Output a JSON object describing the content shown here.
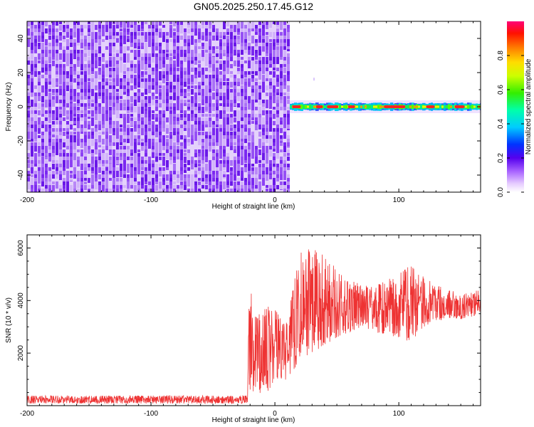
{
  "title": "GN05.2025.250.17.45.G12",
  "chart_data": [
    {
      "type": "heatmap",
      "xlabel": "Height of straight line (km)",
      "ylabel": "Frequency (Hz)",
      "xlim": [
        -200,
        166
      ],
      "ylim": [
        -50,
        50
      ],
      "xticks": [
        -200,
        -100,
        0,
        100
      ],
      "yticks": [
        -40,
        -20,
        0,
        20,
        40
      ],
      "noise_region_x": [
        -200,
        12
      ],
      "signal_band_freq_hz": 0,
      "signal_band_x": [
        12,
        166
      ],
      "colorbar": {
        "label": "Normalized spectral amplitude",
        "range": [
          0.0,
          1.0
        ],
        "ticks": [
          "0.0",
          "0.2",
          "0.4",
          "0.6",
          "0.8"
        ]
      },
      "grid": false
    },
    {
      "type": "line",
      "xlabel": "Height of straight line (km)",
      "ylabel": "SNR (10 * v/v)",
      "xlim": [
        -200,
        166
      ],
      "ylim": [
        0,
        6500
      ],
      "xticks": [
        -200,
        -100,
        0,
        100
      ],
      "yticks": [
        2000,
        4000,
        6000
      ],
      "color": "#ee3333",
      "grid": false,
      "series": [
        {
          "envelope_x": [
            -200,
            -50,
            -22,
            -21,
            -15,
            -10,
            -5,
            0,
            5,
            10,
            15,
            20,
            30,
            40,
            50,
            60,
            70,
            80,
            90,
            100,
            110,
            120,
            130,
            140,
            150,
            160,
            166
          ],
          "envelope_low": [
            80,
            80,
            80,
            600,
            300,
            600,
            500,
            800,
            900,
            1000,
            1300,
            1700,
            2000,
            2300,
            2600,
            2800,
            3000,
            2800,
            2700,
            2600,
            2400,
            3000,
            3200,
            3300,
            3300,
            3400,
            3500
          ],
          "envelope_high": [
            380,
            380,
            380,
            4650,
            3500,
            3600,
            3800,
            3700,
            3500,
            3100,
            4700,
            5900,
            6000,
            5700,
            5200,
            4800,
            4600,
            4500,
            4800,
            5000,
            5400,
            4900,
            4600,
            4400,
            4300,
            4300,
            4500
          ]
        }
      ]
    }
  ]
}
